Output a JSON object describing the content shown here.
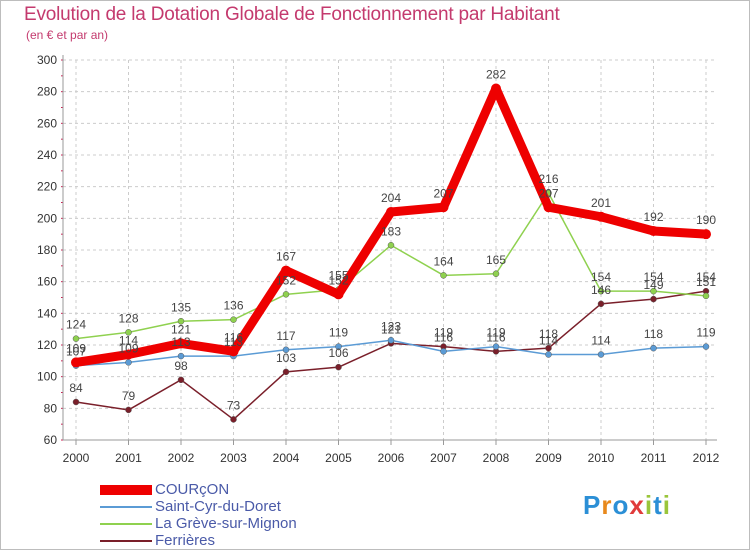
{
  "chart_data": {
    "type": "line",
    "title": "Evolution de la Dotation Globale de Fonctionnement par Habitant",
    "subtitle": "(en € et par an)",
    "xlabel": "",
    "ylabel": "",
    "categories": [
      "2000",
      "2001",
      "2002",
      "2003",
      "2004",
      "2005",
      "2006",
      "2007",
      "2008",
      "2009",
      "2010",
      "2011",
      "2012"
    ],
    "ylim": [
      60,
      300
    ],
    "yticks": [
      60,
      80,
      100,
      120,
      140,
      160,
      180,
      200,
      220,
      240,
      260,
      280,
      300
    ],
    "grid": "horizontal dashed",
    "legend_position": "bottom-left",
    "series": [
      {
        "name": "Ferrières",
        "color": "#7a1f2a",
        "values": [
          84,
          79,
          98,
          73,
          103,
          106,
          121,
          119,
          116,
          118,
          146,
          149,
          154
        ],
        "labels": [
          "84",
          "79",
          "98",
          "73",
          "103",
          "106",
          "121",
          "119",
          "116",
          "118",
          "146",
          "149",
          "154"
        ]
      },
      {
        "name": "Saint-Cyr-du-Doret",
        "color": "#5b9bd5",
        "values": [
          107,
          109,
          113,
          113,
          117,
          119,
          123,
          116,
          119,
          114,
          114,
          118,
          119
        ],
        "labels": [
          "107",
          "109",
          "113",
          "113",
          "117",
          "119",
          "123",
          "116",
          "119",
          "114",
          "114",
          "118",
          "119"
        ]
      },
      {
        "name": "La Grève-sur-Mignon",
        "color": "#8fd14f",
        "values": [
          124,
          128,
          135,
          136,
          152,
          155,
          183,
          164,
          165,
          216,
          154,
          154,
          151
        ],
        "labels": [
          "124",
          "128",
          "135",
          "136",
          "152",
          "155",
          "183",
          "164",
          "165",
          "216",
          "154",
          "154",
          "151"
        ]
      },
      {
        "name": "COURçON",
        "color": "#ee0000",
        "values": [
          109,
          114,
          121,
          116,
          167,
          152,
          204,
          207,
          282,
          207,
          201,
          192,
          190
        ],
        "labels": [
          "109",
          "114",
          "121",
          "116",
          "167",
          "152",
          "204",
          "207",
          "282",
          "207",
          "201",
          "192",
          "190"
        ]
      }
    ],
    "legend": [
      "COURçON",
      "Saint-Cyr-du-Doret",
      "La Grève-sur-Mignon",
      "Ferrières"
    ]
  },
  "brand": {
    "text": "Proxiti",
    "letters": [
      "P",
      "r",
      "o",
      "x",
      "i",
      "t",
      "i"
    ],
    "colors": [
      "#2b8fd6",
      "#e8891c",
      "#2b8fd6",
      "#e03b3b",
      "#9ac53b",
      "#2b8fd6",
      "#9ac53b"
    ]
  }
}
